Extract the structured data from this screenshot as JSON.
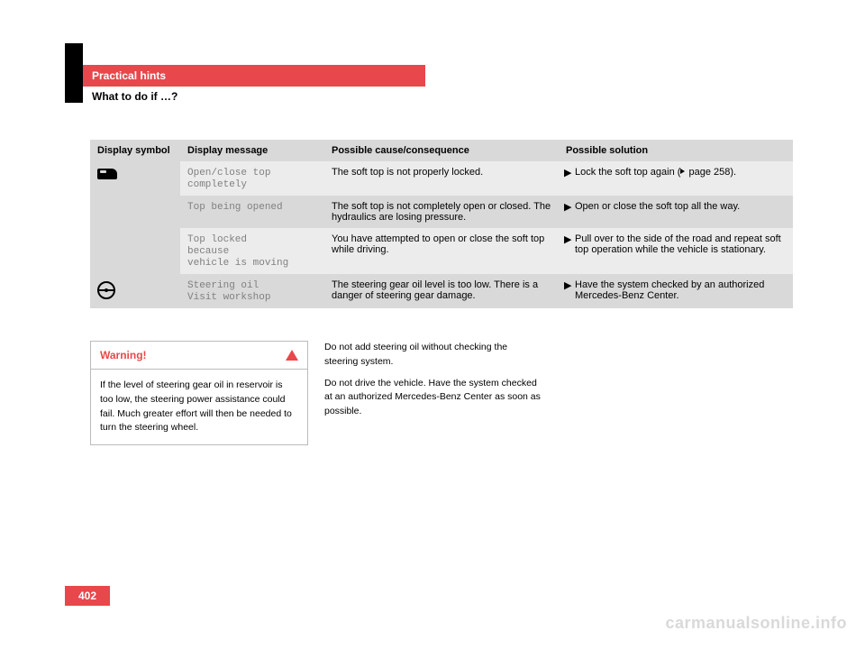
{
  "header": {
    "title": "Practical hints",
    "subtitle": "What to do if …?"
  },
  "table": {
    "columns": [
      "Display symbol",
      "Display message",
      "Possible cause/consequence",
      "Possible solution"
    ],
    "col_widths": [
      "100px",
      "160px",
      "260px",
      "260px"
    ],
    "rows": [
      {
        "symbol": "car",
        "row_class": "light",
        "message": "Open/close top\ncompletely",
        "cause": "The soft top is not properly locked.",
        "solution": "Lock the soft top again (__PAGEREF__ page 258)."
      },
      {
        "symbol": "",
        "row_class": "dark",
        "message": "Top being opened",
        "cause": "The soft top is not completely open or closed. The hydraulics are losing pressure.",
        "solution": "Open or close the soft top all the way."
      },
      {
        "symbol": "",
        "row_class": "light",
        "message": "Top locked\nbecause\nvehicle is moving",
        "cause": "You have attempted to open or close the soft top while driving.",
        "solution": "Pull over to the side of the road and repeat soft top operation while the vehicle is stationary."
      },
      {
        "symbol": "steer",
        "row_class": "dark",
        "message": "Steering oil\nVisit workshop",
        "cause": "The steering gear oil level is too low. There is a danger of steering gear damage.",
        "solution": "Have the system checked by an authorized Mercedes-Benz Center."
      }
    ]
  },
  "warning": {
    "title": "Warning!",
    "body": "If the level of steering gear oil in reservoir is too low, the steering power assistance could fail. Much greater effort will then be needed to turn the steering wheel."
  },
  "note": {
    "p1": "Do not add steering oil without checking the steering system.",
    "p2": "Do not drive the vehicle. Have the system checked at an authorized Mercedes-Benz Center as soon as possible."
  },
  "page_number": "402",
  "watermark": "carmanualsonline.info",
  "colors": {
    "accent": "#e8474c",
    "grey_light": "#ececec",
    "grey_dark": "#d9d9d9",
    "mono_text": "#808080"
  }
}
